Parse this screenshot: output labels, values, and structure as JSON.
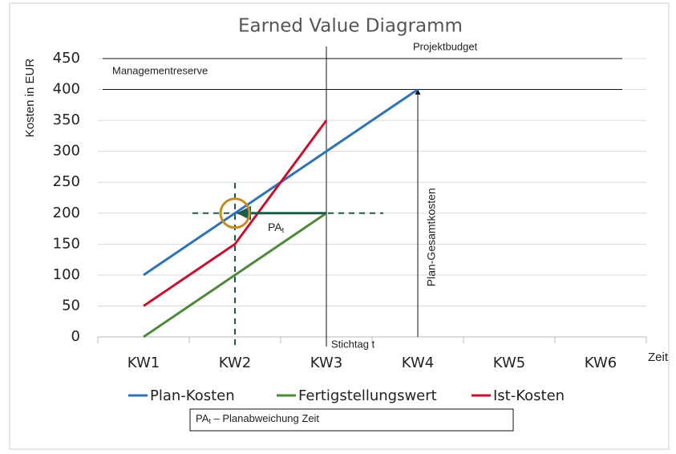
{
  "chart_data": {
    "type": "line",
    "title": "Earned Value Diagramm",
    "y_label": "Kosten in EUR",
    "x_label": "Zeit",
    "categories": [
      "KW1",
      "KW2",
      "KW3",
      "KW4",
      "KW5",
      "KW6"
    ],
    "series": [
      {
        "name": "Plan-Kosten",
        "color": "#2f72b5",
        "values": [
          100,
          200,
          300,
          400,
          null,
          null
        ]
      },
      {
        "name": "Fertigstellungswert",
        "color": "#4e8a3a",
        "values": [
          0,
          100,
          200,
          null,
          null,
          null
        ]
      },
      {
        "name": "Ist-Kosten",
        "color": "#c8102e",
        "values": [
          50,
          150,
          350,
          null,
          null,
          null
        ]
      }
    ],
    "ylim": [
      0,
      450
    ],
    "yticks": [
      0,
      50,
      100,
      150,
      200,
      250,
      300,
      350,
      400,
      450
    ],
    "grid": true,
    "legend": "bottom",
    "reference_lines": [
      {
        "value": 450,
        "label": "Projektbudget"
      },
      {
        "value": 400,
        "label": "Managementreserve"
      }
    ],
    "cutoff": {
      "category_index": 2,
      "label": "Stichtag t"
    },
    "total_cost_arrow": {
      "category_index": 3,
      "value": 400,
      "label": "Plan-Gesamtkosten"
    },
    "schedule_variance": {
      "from_index": 2,
      "to_index": 1,
      "value": 200,
      "label": "PA",
      "subscript": "t",
      "color": "#1e5a4a",
      "circle_color": "#c98a1e"
    },
    "note": {
      "label": "PA",
      "subscript": "t",
      "text": " – Planabweichung Zeit"
    }
  }
}
